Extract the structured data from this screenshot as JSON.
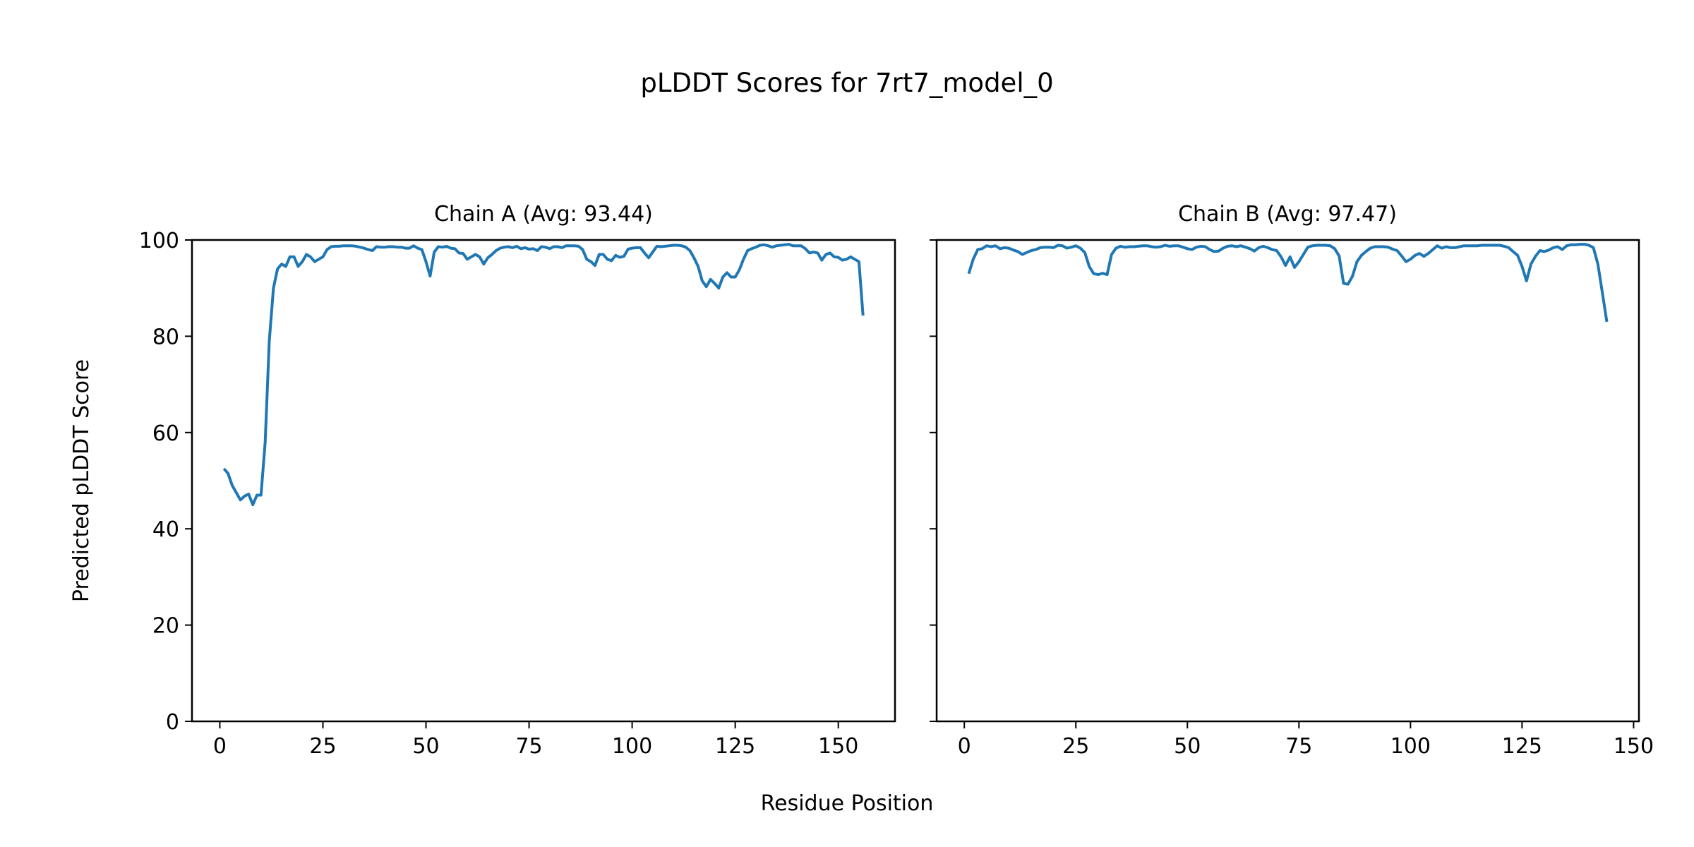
{
  "figure": {
    "title": "pLDDT Scores for 7rt7_model_0",
    "xlabel": "Residue Position",
    "ylabel": "Predicted pLDDT Score"
  },
  "colors": {
    "line": "#1f77b4",
    "axes": "#000000",
    "background": "#ffffff"
  },
  "chart_data": [
    {
      "type": "line",
      "title": "Chain A (Avg: 93.44)",
      "xlabel": "Residue Position",
      "ylabel": "Predicted pLDDT Score",
      "xlim": [
        -6.75,
        163.75
      ],
      "ylim": [
        0,
        100
      ],
      "xticks": [
        0,
        25,
        50,
        75,
        100,
        125,
        150
      ],
      "yticks": [
        0,
        20,
        40,
        60,
        80,
        100
      ],
      "grid": false,
      "x_start": 1,
      "values": [
        52.5,
        51.5,
        49,
        47.5,
        46,
        46.8,
        47.2,
        45,
        47,
        47,
        58,
        79,
        90,
        94,
        95,
        94.5,
        96.5,
        96.5,
        94.5,
        95.5,
        97,
        96.5,
        95.5,
        96,
        96.5,
        98,
        98.6,
        98.7,
        98.7,
        98.8,
        98.8,
        98.8,
        98.7,
        98.5,
        98.3,
        98,
        97.8,
        98.6,
        98.5,
        98.5,
        98.6,
        98.6,
        98.5,
        98.5,
        98.3,
        98.3,
        98.8,
        98.3,
        98,
        95.5,
        92.5,
        97.5,
        98.6,
        98.5,
        98.7,
        98.3,
        98.2,
        97.3,
        97.2,
        96,
        96.5,
        97,
        96.5,
        95,
        96.3,
        97,
        97.8,
        98.3,
        98.5,
        98.6,
        98.4,
        98.7,
        98.2,
        98.4,
        98.1,
        98.2,
        97.8,
        98.6,
        98.5,
        98.2,
        98.6,
        98.6,
        98.4,
        98.8,
        98.8,
        98.8,
        98.7,
        98,
        96,
        95.5,
        94.7,
        97,
        97,
        96,
        95.7,
        96.8,
        96.4,
        96.6,
        98.1,
        98.3,
        98.4,
        98.4,
        97.3,
        96.3,
        97.5,
        98.7,
        98.6,
        98.7,
        98.8,
        98.9,
        98.9,
        98.8,
        98.5,
        97.8,
        96.3,
        94.5,
        91.5,
        90.3,
        91.8,
        91,
        90,
        92.3,
        93.2,
        92.3,
        92.3,
        93.8,
        96,
        97.8,
        98.2,
        98.5,
        98.9,
        99,
        98.8,
        98.5,
        98.8,
        98.9,
        99,
        99.1,
        98.8,
        98.8,
        98.8,
        98.2,
        97.3,
        97.5,
        97.3,
        95.8,
        97,
        97.3,
        96.5,
        96.4,
        95.8,
        96,
        96.5,
        96,
        95.5,
        84.3
      ]
    },
    {
      "type": "line",
      "title": "Chain B (Avg: 97.47)",
      "xlabel": "Residue Position",
      "ylabel": "",
      "xlim": [
        -6.2,
        151.2
      ],
      "ylim": [
        0,
        100
      ],
      "xticks": [
        0,
        25,
        50,
        75,
        100,
        125,
        150
      ],
      "yticks": [
        0,
        20,
        40,
        60,
        80,
        100
      ],
      "grid": false,
      "x_start": 1,
      "values": [
        93,
        96,
        98,
        98.2,
        98.8,
        98.6,
        98.8,
        98.2,
        98.4,
        98.3,
        97.9,
        97.6,
        97,
        97.4,
        97.8,
        98,
        98.4,
        98.5,
        98.5,
        98.4,
        98.9,
        98.8,
        98.3,
        98.5,
        98.8,
        98.3,
        97.4,
        94.5,
        93,
        92.8,
        93.1,
        92.8,
        97,
        98.3,
        98.7,
        98.5,
        98.6,
        98.6,
        98.7,
        98.8,
        98.8,
        98.6,
        98.5,
        98.6,
        98.9,
        98.7,
        98.8,
        98.8,
        98.5,
        98.2,
        98,
        98.5,
        98.7,
        98.6,
        98,
        97.6,
        97.7,
        98.3,
        98.7,
        98.8,
        98.6,
        98.8,
        98.5,
        98.2,
        97.7,
        98.4,
        98.7,
        98.4,
        98,
        97.8,
        96.5,
        94.7,
        96.5,
        94.3,
        95.5,
        97,
        98.5,
        98.8,
        98.9,
        98.9,
        98.9,
        98.8,
        98.2,
        96.7,
        91,
        90.8,
        92.5,
        95.5,
        96.8,
        97.6,
        98.3,
        98.6,
        98.6,
        98.6,
        98.5,
        98.1,
        97.8,
        96.7,
        95.5,
        96,
        96.8,
        97.2,
        96.6,
        97.2,
        98,
        98.8,
        98.3,
        98.6,
        98.4,
        98.4,
        98.6,
        98.8,
        98.8,
        98.8,
        98.8,
        98.9,
        98.9,
        98.9,
        98.9,
        98.9,
        98.7,
        98.4,
        97.6,
        96.8,
        94.5,
        91.5,
        95,
        96.6,
        97.8,
        97.6,
        97.9,
        98.4,
        98.6,
        98,
        98.8,
        99,
        99,
        99.1,
        99.1,
        98.9,
        98.4,
        95,
        89,
        83
      ]
    }
  ]
}
